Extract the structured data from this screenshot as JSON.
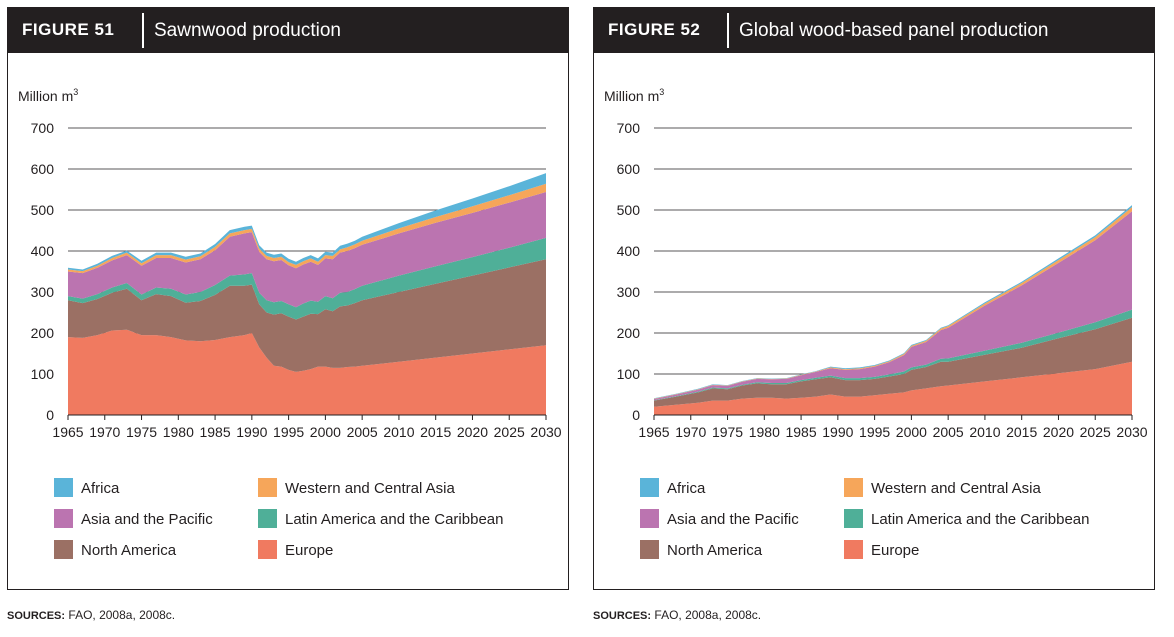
{
  "colors": {
    "Africa": "#5ab4d9",
    "Western and Central Asia": "#f6a65a",
    "Asia and the Pacific": "#bb74b0",
    "Latin America and the Caribbean": "#4faf98",
    "North America": "#9b7064",
    "Europe": "#f07a60"
  },
  "chart_data": [
    {
      "type": "area",
      "stacked": true,
      "figure_label": "FIGURE 51",
      "title": "Sawnwood production",
      "unit_label": "Million m",
      "unit_sup": "3",
      "ylim": [
        0,
        700
      ],
      "yticks": [
        0,
        100,
        200,
        300,
        400,
        500,
        600,
        700
      ],
      "xticks": [
        1965,
        1970,
        1975,
        1980,
        1985,
        1990,
        1995,
        2000,
        2005,
        2010,
        2015,
        2020,
        2025,
        2030
      ],
      "grid": true,
      "legend_position": "bottom",
      "source_label": "SOURCES:",
      "source_text": " FAO, 2008a, 2008c.",
      "x": [
        1965,
        1967,
        1969,
        1971,
        1973,
        1975,
        1977,
        1979,
        1981,
        1983,
        1985,
        1987,
        1989,
        1990,
        1991,
        1992,
        1993,
        1994,
        1995,
        1996,
        1997,
        1998,
        1999,
        2000,
        2001,
        2002,
        2003,
        2004,
        2005,
        2010,
        2015,
        2020,
        2025,
        2030
      ],
      "series": [
        {
          "name": "Europe",
          "values": [
            190,
            188,
            195,
            206,
            208,
            195,
            195,
            190,
            182,
            180,
            183,
            190,
            195,
            200,
            165,
            140,
            120,
            118,
            110,
            105,
            108,
            112,
            118,
            118,
            115,
            115,
            117,
            118,
            120,
            130,
            140,
            150,
            160,
            170
          ]
        },
        {
          "name": "North America",
          "values": [
            90,
            85,
            88,
            92,
            100,
            85,
            100,
            100,
            92,
            98,
            110,
            125,
            120,
            118,
            105,
            110,
            125,
            130,
            130,
            128,
            132,
            135,
            128,
            140,
            138,
            150,
            150,
            155,
            160,
            170,
            180,
            190,
            200,
            210
          ]
        },
        {
          "name": "Latin America and the Caribbean",
          "values": [
            10,
            11,
            12,
            13,
            14,
            14,
            16,
            18,
            20,
            22,
            24,
            25,
            28,
            28,
            28,
            30,
            30,
            30,
            30,
            30,
            32,
            32,
            30,
            32,
            32,
            33,
            33,
            34,
            35,
            40,
            43,
            45,
            48,
            52
          ]
        },
        {
          "name": "Asia and the Pacific",
          "values": [
            60,
            62,
            64,
            66,
            68,
            70,
            72,
            75,
            78,
            80,
            85,
            95,
            100,
            100,
            100,
            100,
            100,
            100,
            95,
            95,
            95,
            95,
            90,
            92,
            95,
            98,
            100,
            100,
            100,
            103,
            106,
            108,
            110,
            112
          ]
        },
        {
          "name": "Western and Central Asia",
          "values": [
            5,
            5,
            5,
            6,
            6,
            6,
            7,
            7,
            7,
            7,
            8,
            8,
            8,
            8,
            8,
            8,
            8,
            8,
            8,
            8,
            8,
            8,
            8,
            8,
            8,
            8,
            9,
            9,
            10,
            12,
            14,
            16,
            18,
            20
          ]
        },
        {
          "name": "Africa",
          "values": [
            4,
            4,
            5,
            5,
            5,
            6,
            6,
            6,
            7,
            7,
            7,
            8,
            8,
            8,
            8,
            8,
            8,
            8,
            8,
            8,
            8,
            8,
            8,
            8,
            8,
            9,
            9,
            9,
            10,
            13,
            16,
            19,
            22,
            26
          ]
        }
      ]
    },
    {
      "type": "area",
      "stacked": true,
      "figure_label": "FIGURE 52",
      "title": "Global wood-based panel production",
      "unit_label": "Million m",
      "unit_sup": "3",
      "ylim": [
        0,
        700
      ],
      "yticks": [
        0,
        100,
        200,
        300,
        400,
        500,
        600,
        700
      ],
      "xticks": [
        1965,
        1970,
        1975,
        1980,
        1985,
        1990,
        1995,
        2000,
        2005,
        2010,
        2015,
        2020,
        2025,
        2030
      ],
      "grid": true,
      "legend_position": "bottom",
      "source_label": "SOURCES:",
      "source_text": " FAO, 2008a, 2008c.",
      "x": [
        1965,
        1968,
        1971,
        1973,
        1975,
        1977,
        1979,
        1981,
        1983,
        1985,
        1987,
        1989,
        1991,
        1993,
        1995,
        1997,
        1999,
        2000,
        2002,
        2004,
        2005,
        2010,
        2015,
        2020,
        2025,
        2030
      ],
      "series": [
        {
          "name": "Europe",
          "values": [
            20,
            25,
            30,
            35,
            35,
            40,
            42,
            42,
            40,
            42,
            45,
            50,
            45,
            45,
            48,
            52,
            55,
            60,
            65,
            70,
            72,
            82,
            92,
            102,
            112,
            130
          ]
        },
        {
          "name": "North America",
          "values": [
            15,
            20,
            25,
            30,
            28,
            32,
            35,
            33,
            35,
            40,
            42,
            42,
            40,
            40,
            40,
            42,
            45,
            50,
            52,
            60,
            58,
            65,
            72,
            85,
            97,
            107
          ]
        },
        {
          "name": "Latin America and the Caribbean",
          "values": [
            1,
            1,
            2,
            2,
            2,
            2,
            3,
            3,
            3,
            3,
            4,
            4,
            5,
            5,
            5,
            5,
            6,
            6,
            6,
            7,
            8,
            10,
            12,
            14,
            17,
            20
          ]
        },
        {
          "name": "Asia and the Pacific",
          "values": [
            3,
            4,
            5,
            6,
            6,
            7,
            8,
            9,
            10,
            12,
            14,
            18,
            20,
            22,
            25,
            30,
            40,
            50,
            55,
            70,
            75,
            110,
            140,
            170,
            200,
            240
          ]
        },
        {
          "name": "Western and Central Asia",
          "values": [
            1,
            1,
            1,
            1,
            1,
            1,
            1,
            1,
            1,
            1,
            1,
            2,
            2,
            2,
            2,
            2,
            3,
            3,
            3,
            4,
            4,
            5,
            6,
            7,
            8,
            10
          ]
        },
        {
          "name": "Africa",
          "values": [
            1,
            1,
            1,
            1,
            1,
            1,
            1,
            1,
            1,
            1,
            1,
            2,
            2,
            2,
            2,
            2,
            2,
            2,
            2,
            2,
            2,
            3,
            3,
            4,
            4,
            5
          ]
        }
      ]
    }
  ],
  "legend_order": [
    "Africa",
    "Western and Central Asia",
    "Asia and the Pacific",
    "Latin America and the Caribbean",
    "North America",
    "Europe"
  ]
}
